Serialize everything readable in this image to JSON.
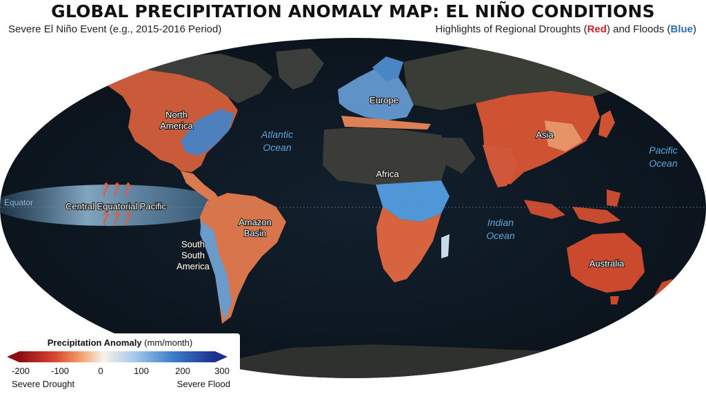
{
  "title": "GLOBAL PRECIPITATION ANOMALY MAP: EL NIÑO CONDITIONS",
  "subtitle_left": "Severe El Niño Event (e.g., 2015-2016 Period)",
  "subtitle_right": {
    "prefix": "Highlights of Regional Droughts (",
    "red_word": "Red",
    "middle": ") and Floods (",
    "blue_word": "Blue",
    "suffix": ")"
  },
  "equator_label": "Equator",
  "region_labels": {
    "north_america": [
      "North",
      "America"
    ],
    "europe": "Europe",
    "asia": "Asia",
    "africa": "Africa",
    "central_pacific": "Central Equatorial Pacific",
    "amazon": [
      "Amazon",
      "Basin"
    ],
    "south_america": [
      "South",
      "South",
      "America"
    ],
    "australia": "Australia"
  },
  "ocean_labels": {
    "atlantic": [
      "Atlantic",
      "Ocean"
    ],
    "pacific": [
      "Pacific",
      "Ocean"
    ],
    "indian": [
      "Indian",
      "Ocean"
    ]
  },
  "legend": {
    "title_bold": "Precipitation Anomaly",
    "title_unit": " (mm/month)",
    "ticks": [
      "-200",
      "-100",
      "0",
      "100",
      "200",
      "300"
    ],
    "left_end": "Severe Drought",
    "right_end": "Severe Flood"
  },
  "colors": {
    "drought_strong": "#a81c1c",
    "drought": "#e85d3a",
    "neutral": "#f2efe9",
    "flood": "#4f97d6",
    "flood_strong": "#1a3e9c",
    "ocean": "#0c1620",
    "land_neutral": "#3b3b38"
  }
}
